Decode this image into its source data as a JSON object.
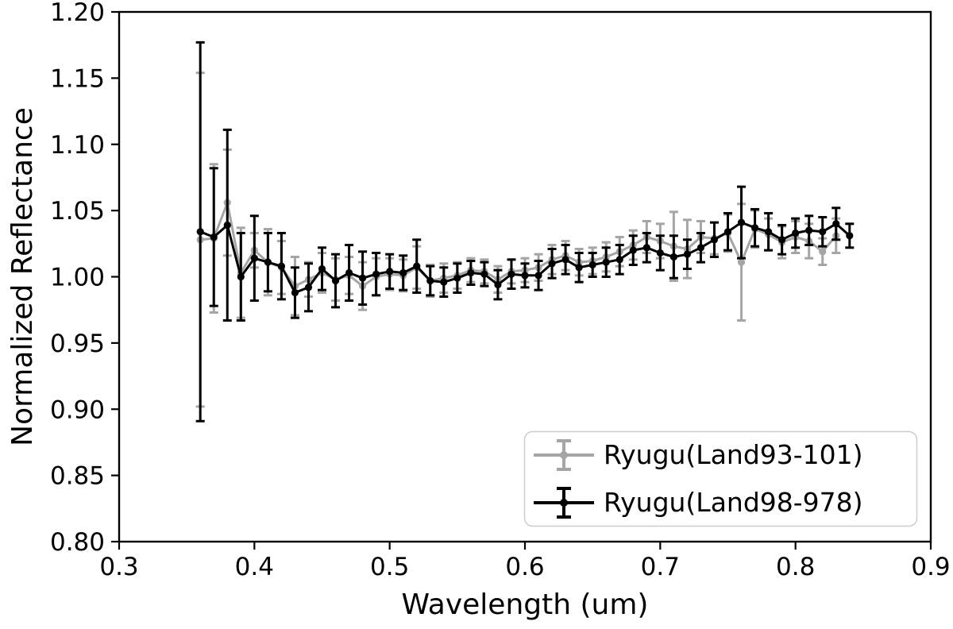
{
  "figure": {
    "background": "#ffffff",
    "frame_color": "#000000"
  },
  "chart_data": {
    "type": "line",
    "title": "",
    "xlabel": "Wavelength (um)",
    "ylabel": "Normalized Reflectance",
    "xlim": [
      0.3,
      0.9
    ],
    "ylim": [
      0.8,
      1.2
    ],
    "grid": false,
    "error_bars": true,
    "legend_position": "lower right",
    "x_ticks": [
      "0.3",
      "0.4",
      "0.5",
      "0.6",
      "0.7",
      "0.8",
      "0.9"
    ],
    "y_ticks": [
      "0.80",
      "0.85",
      "0.90",
      "0.95",
      "1.00",
      "1.05",
      "1.10",
      "1.15",
      "1.20"
    ],
    "series": [
      {
        "name": "Ryugu(Land93-101)",
        "color": "#a5a5a5",
        "marker": "circle",
        "x": [
          0.36,
          0.37,
          0.38,
          0.39,
          0.4,
          0.41,
          0.42,
          0.43,
          0.44,
          0.45,
          0.46,
          0.47,
          0.48,
          0.49,
          0.5,
          0.51,
          0.52,
          0.53,
          0.54,
          0.55,
          0.56,
          0.57,
          0.58,
          0.59,
          0.6,
          0.61,
          0.62,
          0.63,
          0.64,
          0.65,
          0.66,
          0.67,
          0.68,
          0.69,
          0.7,
          0.71,
          0.72,
          0.73,
          0.74,
          0.75,
          0.76,
          0.77,
          0.78,
          0.79,
          0.8,
          0.81,
          0.82,
          0.83
        ],
        "y": [
          1.028,
          1.029,
          1.056,
          1.003,
          1.02,
          1.011,
          1.007,
          0.993,
          0.998,
          1.003,
          0.998,
          1.001,
          0.993,
          1.0,
          1.002,
          1.001,
          1.007,
          0.997,
          0.999,
          1.001,
          1.005,
          1.004,
          0.998,
          1.004,
          1.005,
          1.007,
          1.013,
          1.016,
          1.011,
          1.012,
          1.015,
          1.019,
          1.024,
          1.03,
          1.027,
          1.023,
          1.021,
          1.03,
          1.029,
          1.033,
          1.011,
          1.036,
          1.032,
          1.026,
          1.03,
          1.027,
          1.019,
          1.031
        ],
        "yerr": [
          0.126,
          0.056,
          0.04,
          0.034,
          0.013,
          0.025,
          0.02,
          0.022,
          0.013,
          0.015,
          0.016,
          0.014,
          0.018,
          0.014,
          0.012,
          0.012,
          0.016,
          0.012,
          0.011,
          0.01,
          0.009,
          0.009,
          0.01,
          0.009,
          0.009,
          0.01,
          0.011,
          0.011,
          0.01,
          0.01,
          0.011,
          0.011,
          0.011,
          0.012,
          0.013,
          0.026,
          0.022,
          0.012,
          0.012,
          0.014,
          0.044,
          0.014,
          0.012,
          0.012,
          0.012,
          0.013,
          0.01,
          0.013
        ]
      },
      {
        "name": "Ryugu(Land98-978)",
        "color": "#000000",
        "marker": "circle",
        "x": [
          0.36,
          0.37,
          0.38,
          0.39,
          0.4,
          0.41,
          0.42,
          0.43,
          0.44,
          0.45,
          0.46,
          0.47,
          0.48,
          0.49,
          0.5,
          0.51,
          0.52,
          0.53,
          0.54,
          0.55,
          0.56,
          0.57,
          0.58,
          0.59,
          0.6,
          0.61,
          0.62,
          0.63,
          0.64,
          0.65,
          0.66,
          0.67,
          0.68,
          0.69,
          0.7,
          0.71,
          0.72,
          0.73,
          0.74,
          0.75,
          0.76,
          0.77,
          0.78,
          0.79,
          0.8,
          0.81,
          0.82,
          0.83,
          0.84
        ],
        "y": [
          1.034,
          1.03,
          1.039,
          1.0,
          1.014,
          1.011,
          1.008,
          0.988,
          0.992,
          1.006,
          0.997,
          1.003,
          0.999,
          1.002,
          1.004,
          1.003,
          1.008,
          0.997,
          0.996,
          0.999,
          1.003,
          1.002,
          0.994,
          1.002,
          1.001,
          1.001,
          1.01,
          1.013,
          1.007,
          1.009,
          1.011,
          1.013,
          1.02,
          1.022,
          1.018,
          1.015,
          1.017,
          1.022,
          1.028,
          1.034,
          1.041,
          1.037,
          1.034,
          1.028,
          1.033,
          1.035,
          1.034,
          1.04,
          1.031
        ],
        "yerr": [
          0.143,
          0.052,
          0.072,
          0.033,
          0.032,
          0.022,
          0.025,
          0.019,
          0.018,
          0.016,
          0.02,
          0.021,
          0.02,
          0.016,
          0.013,
          0.013,
          0.02,
          0.011,
          0.011,
          0.011,
          0.009,
          0.009,
          0.011,
          0.011,
          0.009,
          0.011,
          0.011,
          0.011,
          0.011,
          0.009,
          0.011,
          0.011,
          0.011,
          0.011,
          0.013,
          0.016,
          0.011,
          0.011,
          0.013,
          0.014,
          0.027,
          0.014,
          0.014,
          0.011,
          0.011,
          0.011,
          0.011,
          0.012,
          0.009
        ]
      }
    ]
  },
  "legend": {
    "border_color": "#cccccc",
    "background": "#ffffff",
    "items": [
      {
        "label": "Ryugu(Land93-101)",
        "color": "#a5a5a5"
      },
      {
        "label": "Ryugu(Land98-978)",
        "color": "#000000"
      }
    ]
  }
}
